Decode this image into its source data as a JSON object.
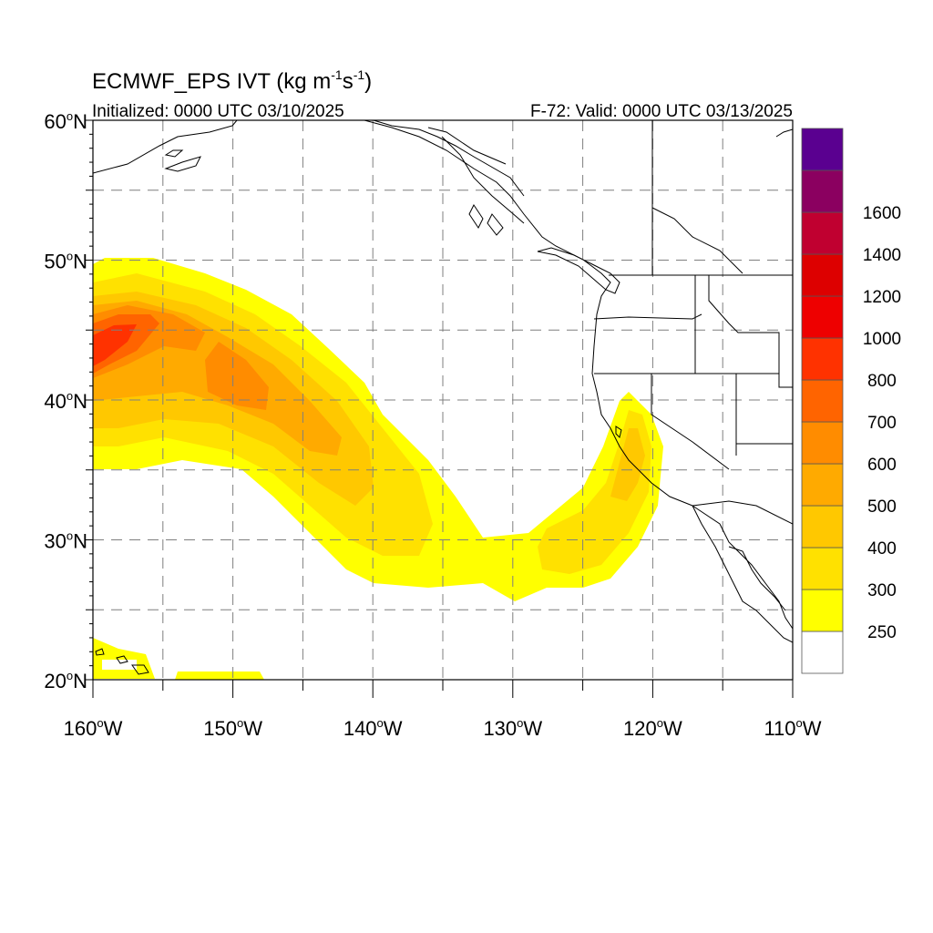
{
  "title": {
    "main": "ECMWF_EPS IVT (kg m",
    "exp1": "-1",
    "mid": "s",
    "exp2": "-1",
    "end": ")"
  },
  "subtitle_left": "Initialized: 0000 UTC 03/10/2025",
  "subtitle_right": "F-72: Valid: 0000 UTC 03/13/2025",
  "lat_labels": [
    {
      "value": 60,
      "num": "60",
      "deg": "o",
      "hem": "N"
    },
    {
      "value": 50,
      "num": "50",
      "deg": "o",
      "hem": "N"
    },
    {
      "value": 40,
      "num": "40",
      "deg": "o",
      "hem": "N"
    },
    {
      "value": 30,
      "num": "30",
      "deg": "o",
      "hem": "N"
    },
    {
      "value": 20,
      "num": "20",
      "deg": "o",
      "hem": "N"
    }
  ],
  "lon_labels": [
    {
      "value": -160,
      "num": "160",
      "deg": "o",
      "hem": "W"
    },
    {
      "value": -150,
      "num": "150",
      "deg": "o",
      "hem": "W"
    },
    {
      "value": -140,
      "num": "140",
      "deg": "o",
      "hem": "W"
    },
    {
      "value": -130,
      "num": "130",
      "deg": "o",
      "hem": "W"
    },
    {
      "value": -120,
      "num": "120",
      "deg": "o",
      "hem": "W"
    },
    {
      "value": -110,
      "num": "110",
      "deg": "o",
      "hem": "W"
    }
  ],
  "colorbar": {
    "colors": [
      "#ffffff",
      "#ffff00",
      "#ffe100",
      "#ffc800",
      "#ffaa00",
      "#ff8c00",
      "#ff6400",
      "#ff3200",
      "#ee0000",
      "#dd0000",
      "#c00030",
      "#8b0060",
      "#5a0090"
    ],
    "labels": [
      "250",
      "300",
      "400",
      "500",
      "600",
      "700",
      "800",
      "1000",
      "1200",
      "1400",
      "1600"
    ]
  },
  "ivt_colors": {
    "250": "#ffff00",
    "300": "#ffe100",
    "400": "#ffc800",
    "500": "#ffaa00",
    "600": "#ff8c00",
    "700": "#ff6400",
    "800": "#ff3200",
    "1000": "#ee0000"
  }
}
